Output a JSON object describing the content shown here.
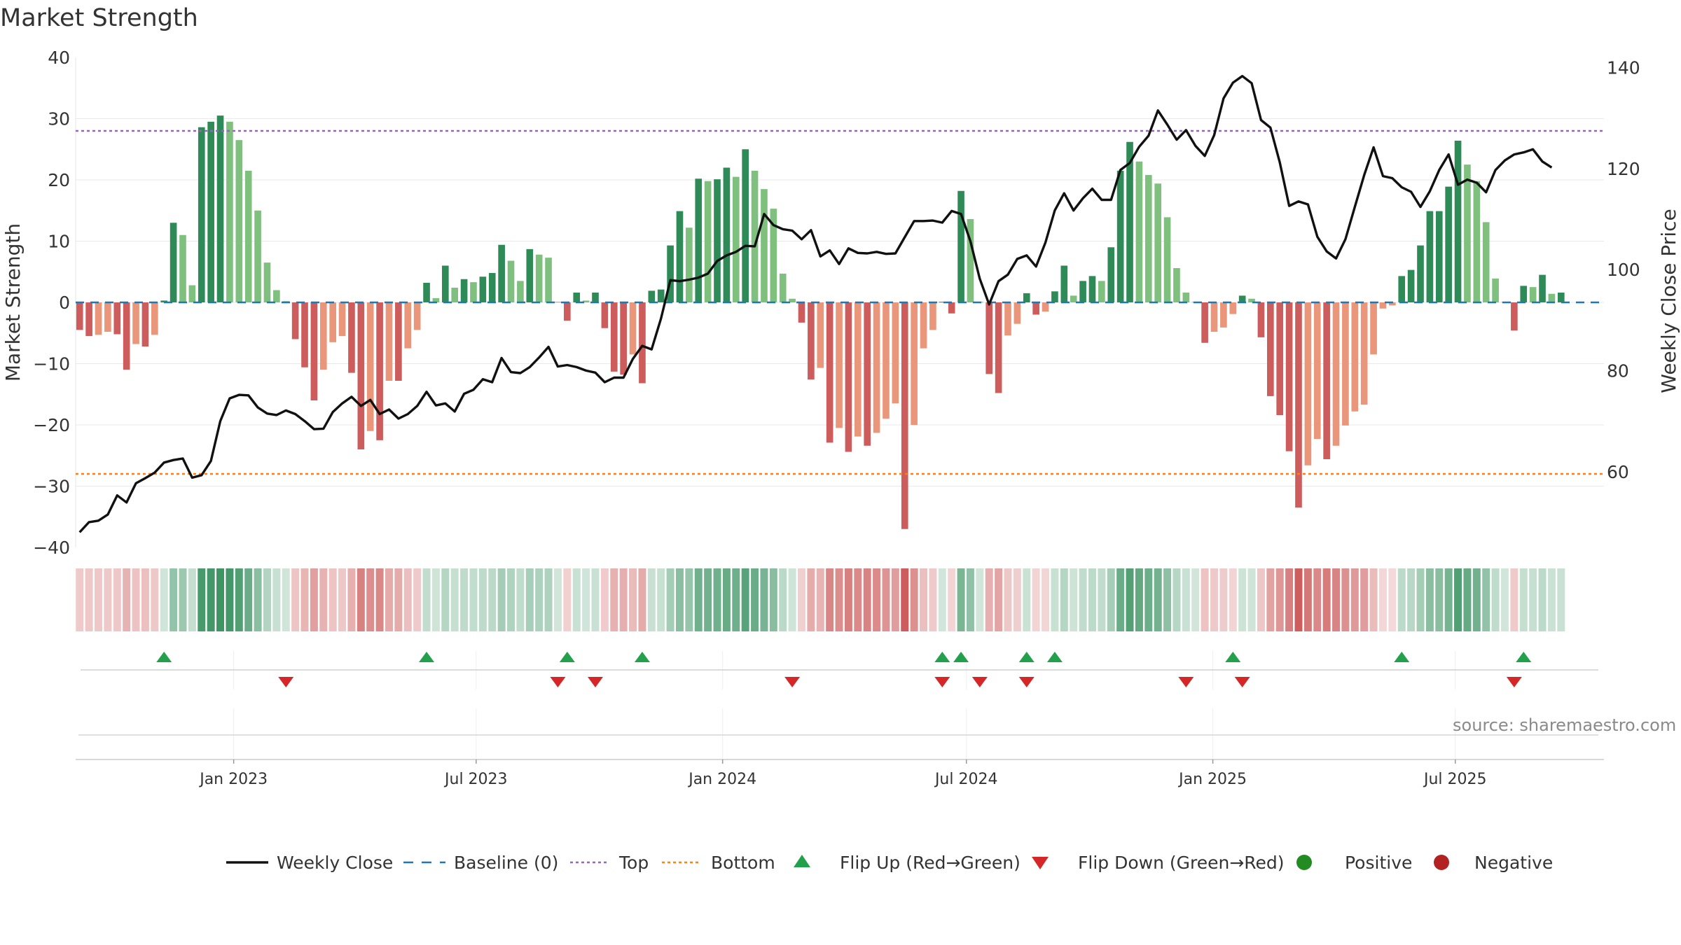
{
  "page": {
    "title": "Market Strength",
    "source": "source: sharemaestro.com"
  },
  "chart_data": {
    "type": "bar",
    "title": "Market Strength",
    "ylabel_left": "Market Strength",
    "ylabel_right": "Weekly Close Price",
    "ylim_left": [
      -40,
      40
    ],
    "ylim_right": [
      45,
      142
    ],
    "yticks_left": [
      {
        "v": 40,
        "label": "40"
      },
      {
        "v": 30,
        "label": "30"
      },
      {
        "v": 20,
        "label": "20"
      },
      {
        "v": 10,
        "label": "10"
      },
      {
        "v": 0,
        "label": "0"
      },
      {
        "v": -10,
        "label": "−10"
      },
      {
        "v": -20,
        "label": "−20"
      },
      {
        "v": -30,
        "label": "−30"
      },
      {
        "v": -40,
        "label": "−40"
      }
    ],
    "yticks_right": [
      {
        "v": 140,
        "label": "140"
      },
      {
        "v": 120,
        "label": "120"
      },
      {
        "v": 100,
        "label": "100"
      },
      {
        "v": 80,
        "label": "80"
      },
      {
        "v": 60,
        "label": "60"
      }
    ],
    "x_start": "2022-09-05",
    "x_end": "2025-10-20",
    "xticks": [
      {
        "date": "2023-01-01",
        "label": "Jan 2023"
      },
      {
        "date": "2023-07-01",
        "label": "Jul 2023"
      },
      {
        "date": "2024-01-01",
        "label": "Jan 2024"
      },
      {
        "date": "2024-07-01",
        "label": "Jul 2024"
      },
      {
        "date": "2025-01-01",
        "label": "Jan 2025"
      },
      {
        "date": "2025-07-01",
        "label": "Jul 2025"
      }
    ],
    "top_threshold": 28,
    "bottom_threshold": -28,
    "baseline": 0,
    "colors": {
      "positive_strong": "#2e8b57",
      "positive_light": "#7fc07f",
      "negative_strong": "#cd5c5c",
      "negative_light": "#e9967a",
      "close_line": "#111111",
      "baseline": "#1f77b4",
      "top": "#9467bd",
      "bottom": "#ff7f0e",
      "flip_up": "#22a04b",
      "flip_down": "#d62728",
      "legend_positive": "#228b22",
      "legend_negative": "#b22222"
    },
    "weekly_strength": [
      -4.5,
      -5.5,
      -5.3,
      -4.8,
      -5.2,
      -11,
      -6.8,
      -7.2,
      -5.3,
      0.3,
      13,
      11,
      2.8,
      28.6,
      29.5,
      30.5,
      29.5,
      26.5,
      21.5,
      15,
      6.5,
      2,
      0.2,
      -6,
      -10.6,
      -16,
      -11,
      -6.5,
      -5.5,
      -11.5,
      -24,
      -21,
      -22.5,
      -12.8,
      -12.8,
      -7.5,
      -4.5,
      3.2,
      0.7,
      6,
      2.4,
      3.8,
      3.3,
      4.2,
      4.8,
      9.4,
      6.8,
      3.5,
      8.7,
      7.8,
      7.3,
      0.1,
      -3,
      1.6,
      0.3,
      1.6,
      -4.2,
      -11.3,
      -11.8,
      -8.5,
      -13.2,
      1.9,
      2.1,
      9.3,
      14.9,
      12.2,
      20.2,
      19.8,
      20.1,
      22,
      20.5,
      25,
      21.5,
      18.5,
      15.3,
      4.7,
      0.6,
      -3.3,
      -12.6,
      -10.7,
      -22.9,
      -20.5,
      -24.4,
      -21.9,
      -23.4,
      -21.3,
      -19,
      -16.5,
      -37,
      -20,
      -7.5,
      -4.5,
      0.1,
      -1.8,
      18.2,
      13.6,
      0.1,
      -11.7,
      -14.8,
      -5.4,
      -3.5,
      1.5,
      -2,
      -1.5,
      1.8,
      6,
      1.1,
      3.5,
      4.3,
      3.5,
      9,
      21.5,
      26.2,
      23,
      20.8,
      19.4,
      13.9,
      5.6,
      1.6,
      0.1,
      -6.6,
      -4.8,
      -4.1,
      -1.9,
      1.1,
      0.6,
      -5.7,
      -15.3,
      -18.4,
      -24.3,
      -33.5,
      -26.6,
      -22.3,
      -25.6,
      -23.4,
      -20.1,
      -17.8,
      -16.7,
      -8.5,
      -1,
      -0.5,
      4.3,
      5.3,
      9.3,
      14.9,
      14.9,
      18.9,
      26.4,
      22.5,
      19.8,
      13.1,
      3.9,
      0.1,
      -4.6,
      2.7,
      2.5,
      4.5,
      1.4,
      1.6
    ],
    "weekly_close": [
      48,
      50,
      50.3,
      51.5,
      55.3,
      53.9,
      57.7,
      58.7,
      59.8,
      61.8,
      62.3,
      62.6,
      58.8,
      59.3,
      62.1,
      70,
      74.5,
      75.2,
      75.1,
      72.7,
      71.5,
      71.2,
      72.1,
      71.4,
      70,
      68.4,
      68.5,
      71.8,
      73.5,
      74.8,
      73,
      74.2,
      71.4,
      72.3,
      70.5,
      71.4,
      73,
      75.8,
      73.1,
      73.5,
      71.9,
      75.4,
      76.2,
      78.3,
      77.7,
      82.5,
      79.7,
      79.5,
      80.7,
      82.6,
      84.7,
      80.8,
      81.1,
      80.7,
      80,
      79.6,
      77.7,
      78.6,
      78.6,
      82.3,
      84.9,
      84.2,
      90.3,
      97.9,
      97.7,
      98,
      98.4,
      99.2,
      101.7,
      102.8,
      103.5,
      104.7,
      104.6,
      111,
      108.8,
      108,
      107.7,
      106,
      107.8,
      102.6,
      103.8,
      101.1,
      104.2,
      103.3,
      103.2,
      103.5,
      103.1,
      103.2,
      106.4,
      109.6,
      109.6,
      109.7,
      109.3,
      111.6,
      111,
      105.6,
      98.2,
      93.1,
      97.7,
      99,
      102.1,
      102.8,
      100.6,
      105.3,
      111.7,
      115.1,
      111.7,
      114.1,
      116,
      113.8,
      113.8,
      119.7,
      121.1,
      124.3,
      126.5,
      131.5,
      128.7,
      125.7,
      127.6,
      124.5,
      122.5,
      126.6,
      133.9,
      137,
      138.3,
      136.9,
      129.6,
      128.1,
      121.2,
      112.6,
      113.5,
      112.9,
      106.5,
      103.6,
      102.2,
      106,
      112.4,
      118.7,
      124.2,
      118.5,
      118.1,
      116.3,
      115.4,
      112.4,
      115.5,
      119.7,
      122.8,
      116.8,
      117.8,
      117.2,
      115.3,
      119.7,
      121.6,
      122.8,
      123.2,
      123.8,
      121.4,
      120.2
    ],
    "flip_up_weeks": [
      9,
      37,
      52,
      60,
      92,
      94,
      101,
      104,
      123,
      141,
      154
    ],
    "flip_down_weeks": [
      22,
      51,
      55,
      76,
      92,
      96,
      101,
      118,
      124,
      153
    ],
    "legend": [
      {
        "key": "close",
        "label": "Weekly Close"
      },
      {
        "key": "baseline",
        "label": "Baseline (0)"
      },
      {
        "key": "top",
        "label": "Top"
      },
      {
        "key": "bottom",
        "label": "Bottom"
      },
      {
        "key": "flip_up",
        "label": "Flip Up (Red→Green)"
      },
      {
        "key": "flip_down",
        "label": "Flip Down (Green→Red)"
      },
      {
        "key": "positive",
        "label": "Positive"
      },
      {
        "key": "negative",
        "label": "Negative"
      }
    ]
  }
}
